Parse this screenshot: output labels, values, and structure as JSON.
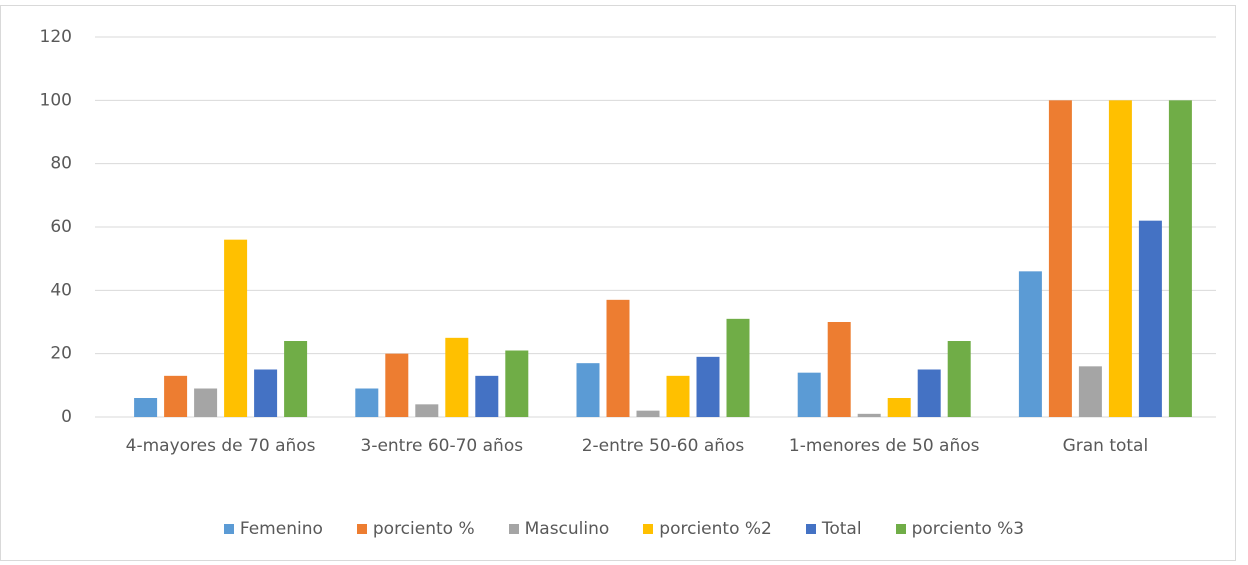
{
  "chart_data": {
    "type": "bar",
    "categories": [
      "4-mayores de 70 años",
      "3-entre 60-70 años",
      "2-entre 50-60 años",
      "1-menores de 50 años",
      "Gran total"
    ],
    "series": [
      {
        "name": "Femenino",
        "color": "#5b9bd5",
        "values": [
          6,
          9,
          17,
          14,
          46
        ]
      },
      {
        "name": "porciento %",
        "color": "#ed7d31",
        "values": [
          13,
          20,
          37,
          30,
          100
        ]
      },
      {
        "name": "Masculino",
        "color": "#a5a5a5",
        "values": [
          9,
          4,
          2,
          1,
          16
        ]
      },
      {
        "name": "porciento %2",
        "color": "#ffc000",
        "values": [
          56,
          25,
          13,
          6,
          100
        ]
      },
      {
        "name": "Total",
        "color": "#4472c4",
        "values": [
          15,
          13,
          19,
          15,
          62
        ]
      },
      {
        "name": "porciento %3",
        "color": "#70ad47",
        "values": [
          24,
          21,
          31,
          24,
          100
        ]
      }
    ],
    "ylim": [
      0,
      120
    ],
    "yticks": [
      0,
      20,
      40,
      60,
      80,
      100,
      120
    ],
    "grid": true,
    "legend": "bottom"
  }
}
